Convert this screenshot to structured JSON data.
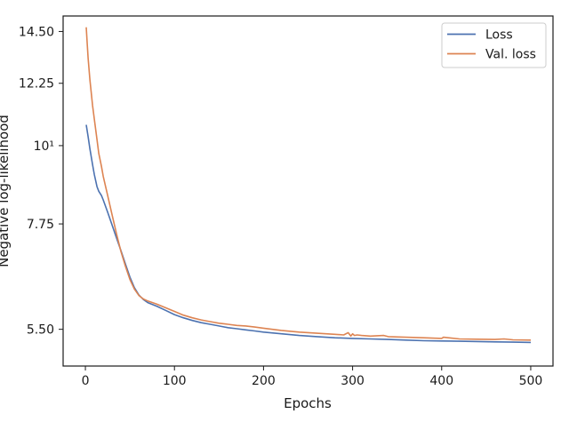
{
  "chart_data": {
    "type": "line",
    "xlabel": "Epochs",
    "ylabel": "Negative log-likelihood",
    "xlim": [
      -25,
      525
    ],
    "ylim": [
      4.88,
      15.25
    ],
    "y_scale": "log",
    "grid": false,
    "legend_position": "top-right",
    "x_ticks": [
      0,
      100,
      200,
      300,
      400,
      500
    ],
    "x_tick_labels": [
      "0",
      "100",
      "200",
      "300",
      "400",
      "500"
    ],
    "y_ticks": [
      5.5,
      7.75,
      10,
      12.25,
      14.5
    ],
    "y_tick_labels": [
      "5.50",
      "7.75",
      "10¹",
      "12.25",
      "14.50"
    ],
    "series": [
      {
        "name": "Loss",
        "color": "#4c72b0",
        "x": [
          1,
          3,
          5,
          8,
          10,
          13,
          15,
          18,
          20,
          25,
          30,
          35,
          40,
          45,
          50,
          55,
          60,
          65,
          70,
          80,
          90,
          100,
          110,
          120,
          130,
          140,
          150,
          160,
          170,
          180,
          190,
          200,
          220,
          240,
          260,
          280,
          300,
          320,
          340,
          360,
          380,
          400,
          420,
          440,
          460,
          480,
          500
        ],
        "values": [
          10.7,
          10.3,
          9.9,
          9.4,
          9.1,
          8.75,
          8.62,
          8.5,
          8.38,
          8.05,
          7.72,
          7.4,
          7.1,
          6.8,
          6.52,
          6.3,
          6.15,
          6.06,
          6.0,
          5.93,
          5.85,
          5.77,
          5.71,
          5.66,
          5.62,
          5.59,
          5.56,
          5.53,
          5.51,
          5.49,
          5.47,
          5.45,
          5.42,
          5.39,
          5.37,
          5.35,
          5.34,
          5.33,
          5.32,
          5.31,
          5.3,
          5.295,
          5.29,
          5.285,
          5.28,
          5.275,
          5.27
        ]
      },
      {
        "name": "Val. loss",
        "color": "#dd8452",
        "x": [
          1,
          2,
          3,
          5,
          8,
          10,
          13,
          15,
          18,
          20,
          25,
          30,
          35,
          40,
          45,
          50,
          55,
          60,
          65,
          70,
          80,
          90,
          100,
          110,
          120,
          130,
          140,
          150,
          160,
          170,
          180,
          190,
          200,
          220,
          240,
          260,
          280,
          290,
          295,
          298,
          300,
          302,
          305,
          310,
          320,
          335,
          340,
          360,
          380,
          400,
          402,
          420,
          440,
          460,
          470,
          480,
          500
        ],
        "values": [
          14.7,
          14.0,
          13.3,
          12.4,
          11.4,
          10.9,
          10.2,
          9.75,
          9.35,
          9.05,
          8.5,
          7.98,
          7.5,
          7.08,
          6.75,
          6.47,
          6.27,
          6.14,
          6.07,
          6.03,
          5.97,
          5.9,
          5.83,
          5.76,
          5.71,
          5.67,
          5.64,
          5.61,
          5.59,
          5.57,
          5.56,
          5.54,
          5.52,
          5.48,
          5.45,
          5.43,
          5.41,
          5.4,
          5.44,
          5.38,
          5.42,
          5.39,
          5.4,
          5.39,
          5.38,
          5.39,
          5.37,
          5.36,
          5.35,
          5.34,
          5.36,
          5.33,
          5.325,
          5.32,
          5.33,
          5.315,
          5.31
        ]
      }
    ]
  }
}
